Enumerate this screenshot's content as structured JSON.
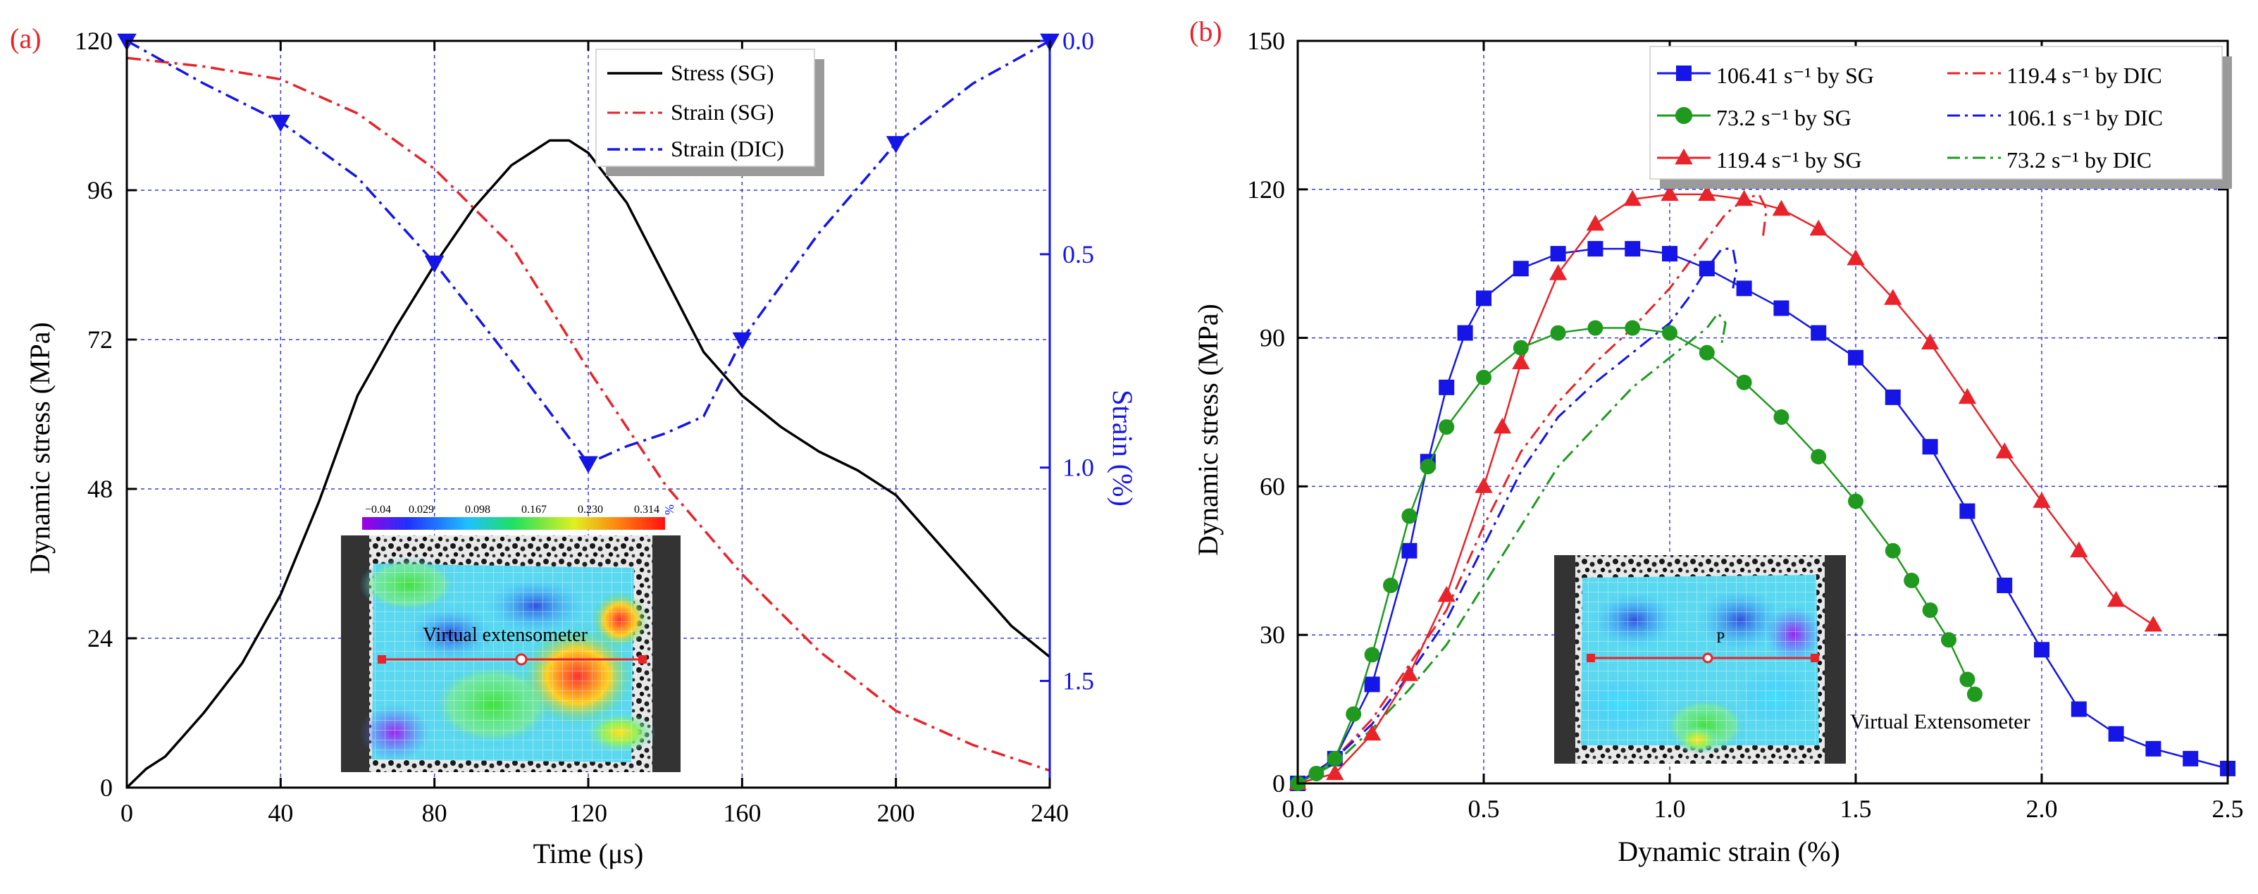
{
  "panel_labels": {
    "a": "(a)",
    "b": "(b)"
  },
  "colors": {
    "black": "#000000",
    "red": "#e8232a",
    "blue": "#1515e8",
    "green": "#1f9a1f",
    "grid": "#3b3be0",
    "legend_shadow": "#9a9a9a"
  },
  "chart_data": [
    {
      "id": "a",
      "type": "line",
      "xlabel": "Time (μs)",
      "ylabel": "Dynamic stress (MPa)",
      "y2label": "Strain (%)",
      "xlim": [
        0,
        240
      ],
      "ylim": [
        0,
        120
      ],
      "y2lim": [
        1.75,
        0.0
      ],
      "x_ticks": [
        "0",
        "40",
        "80",
        "120",
        "160",
        "200",
        "240"
      ],
      "y_ticks": [
        "0",
        "24",
        "48",
        "72",
        "96",
        "120"
      ],
      "y2_ticks": [
        "0.0",
        "0.5",
        "1.0",
        "1.5"
      ],
      "grid": true,
      "legend_position": "top-right",
      "series": [
        {
          "name": "Stress (SG)",
          "axis": "left",
          "color": "#000000",
          "dash": "solid",
          "x": [
            0,
            5,
            10,
            20,
            30,
            40,
            50,
            60,
            70,
            80,
            90,
            100,
            110,
            115,
            120,
            130,
            140,
            150,
            160,
            170,
            180,
            190,
            200,
            210,
            220,
            230,
            240
          ],
          "y": [
            0,
            3,
            5,
            12,
            20,
            31,
            46,
            63,
            74,
            84,
            93,
            100,
            104,
            104,
            102,
            94,
            82,
            70,
            63,
            58,
            54,
            51,
            47,
            40,
            33,
            26,
            21
          ]
        },
        {
          "name": "Strain (SG)",
          "axis": "right",
          "color": "#e8232a",
          "dash": "dashdot",
          "x": [
            0,
            20,
            40,
            60,
            80,
            100,
            120,
            140,
            160,
            180,
            200,
            220,
            240
          ],
          "y": [
            0.04,
            0.06,
            0.09,
            0.17,
            0.3,
            0.48,
            0.77,
            1.04,
            1.25,
            1.43,
            1.57,
            1.65,
            1.71
          ]
        },
        {
          "name": "Strain (DIC)",
          "axis": "right",
          "color": "#1515e8",
          "dash": "dashdot",
          "marker": "triangle-down",
          "x": [
            0,
            20,
            40,
            60,
            80,
            100,
            120,
            130,
            140,
            150,
            160,
            180,
            200,
            220,
            240
          ],
          "y": [
            0.0,
            0.1,
            0.19,
            0.32,
            0.52,
            0.75,
            0.99,
            0.95,
            0.92,
            0.88,
            0.7,
            0.45,
            0.24,
            0.1,
            0.0
          ],
          "marker_x": [
            0,
            40,
            80,
            120,
            160,
            200,
            240
          ],
          "marker_y": [
            0.0,
            0.19,
            0.52,
            0.99,
            0.7,
            0.24,
            0.0
          ]
        }
      ],
      "inset": {
        "colorbar_ticks": [
          "−0.04",
          "0.029",
          "0.098",
          "0.167",
          "0.230",
          "0.314"
        ],
        "colorbar_unit": "%",
        "label": "Virtual extensometer"
      }
    },
    {
      "id": "b",
      "type": "line",
      "xlabel": "Dynamic strain (%)",
      "ylabel": "Dynamic stress (MPa)",
      "xlim": [
        0,
        2.5
      ],
      "ylim": [
        0,
        150
      ],
      "x_ticks": [
        "0.0",
        "0.5",
        "1.0",
        "1.5",
        "2.0",
        "2.5"
      ],
      "y_ticks": [
        "0",
        "30",
        "60",
        "90",
        "120",
        "150"
      ],
      "grid": true,
      "legend_position": "top-right",
      "series": [
        {
          "name": "106.41 s⁻¹ by SG",
          "color": "#1515e8",
          "dash": "solid",
          "marker": "square",
          "x": [
            0.0,
            0.1,
            0.2,
            0.3,
            0.35,
            0.4,
            0.45,
            0.5,
            0.6,
            0.7,
            0.8,
            0.9,
            1.0,
            1.1,
            1.2,
            1.3,
            1.4,
            1.5,
            1.6,
            1.7,
            1.8,
            1.9,
            2.0,
            2.1,
            2.2,
            2.3,
            2.4,
            2.5
          ],
          "y": [
            0,
            5,
            20,
            47,
            65,
            80,
            91,
            98,
            104,
            107,
            108,
            108,
            107,
            104,
            100,
            96,
            91,
            86,
            78,
            68,
            55,
            40,
            27,
            15,
            10,
            7,
            5,
            3
          ]
        },
        {
          "name": "73.2 s⁻¹ by SG",
          "color": "#1f9a1f",
          "dash": "solid",
          "marker": "circle",
          "x": [
            0.0,
            0.05,
            0.1,
            0.15,
            0.2,
            0.25,
            0.3,
            0.35,
            0.4,
            0.5,
            0.6,
            0.7,
            0.8,
            0.9,
            1.0,
            1.1,
            1.2,
            1.3,
            1.4,
            1.5,
            1.6,
            1.65,
            1.7,
            1.75,
            1.8,
            1.82
          ],
          "y": [
            0,
            2,
            5,
            14,
            26,
            40,
            54,
            64,
            72,
            82,
            88,
            91,
            92,
            92,
            91,
            87,
            81,
            74,
            66,
            57,
            47,
            41,
            35,
            29,
            21,
            18
          ]
        },
        {
          "name": "119.4 s⁻¹ by SG",
          "color": "#e8232a",
          "dash": "solid",
          "marker": "triangle-up",
          "x": [
            0.0,
            0.1,
            0.2,
            0.3,
            0.4,
            0.5,
            0.55,
            0.6,
            0.7,
            0.8,
            0.9,
            1.0,
            1.1,
            1.2,
            1.3,
            1.4,
            1.5,
            1.6,
            1.7,
            1.8,
            1.9,
            2.0,
            2.1,
            2.2,
            2.3
          ],
          "y": [
            0,
            2,
            10,
            22,
            38,
            60,
            72,
            85,
            103,
            113,
            118,
            119,
            119,
            118,
            116,
            112,
            106,
            98,
            89,
            78,
            67,
            57,
            47,
            37,
            32
          ]
        },
        {
          "name": "119.4 s⁻¹ by DIC",
          "color": "#e8232a",
          "dash": "dashdot",
          "x": [
            0.0,
            0.1,
            0.2,
            0.3,
            0.4,
            0.5,
            0.6,
            0.7,
            0.8,
            0.9,
            1.0,
            1.1,
            1.15,
            1.2,
            1.24,
            1.26,
            1.25
          ],
          "y": [
            0,
            5,
            13,
            24,
            35,
            52,
            67,
            77,
            85,
            92,
            100,
            110,
            115,
            118,
            119,
            116,
            110
          ]
        },
        {
          "name": "106.1 s⁻¹ by DIC",
          "color": "#1515e8",
          "dash": "dashdot",
          "x": [
            0.0,
            0.1,
            0.2,
            0.3,
            0.4,
            0.5,
            0.6,
            0.7,
            0.8,
            0.9,
            1.0,
            1.05,
            1.1,
            1.14,
            1.17,
            1.18,
            1.17
          ],
          "y": [
            0,
            5,
            12,
            22,
            33,
            48,
            63,
            74,
            81,
            87,
            93,
            98,
            104,
            108,
            108,
            104,
            100
          ]
        },
        {
          "name": "73.2 s⁻¹ by DIC",
          "color": "#1f9a1f",
          "dash": "dashdot",
          "x": [
            0.0,
            0.1,
            0.2,
            0.3,
            0.4,
            0.5,
            0.6,
            0.7,
            0.8,
            0.9,
            1.0,
            1.05,
            1.1,
            1.13,
            1.15,
            1.14
          ],
          "y": [
            0,
            4,
            11,
            19,
            28,
            40,
            52,
            64,
            72,
            80,
            86,
            89,
            92,
            95,
            93,
            89
          ]
        }
      ],
      "inset": {
        "label": "Virtual Extensometer",
        "point_label": "P"
      }
    }
  ]
}
